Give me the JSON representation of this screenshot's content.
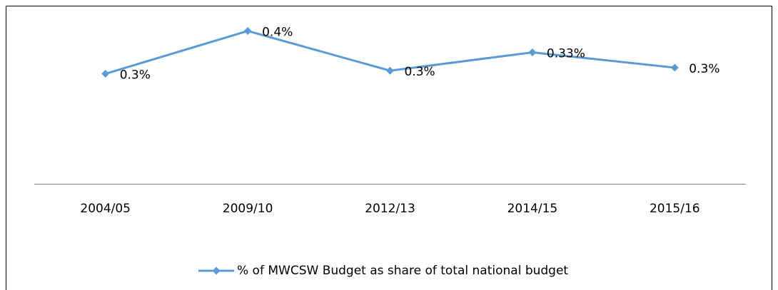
{
  "chart_data": {
    "type": "line",
    "categories": [
      "2004/05",
      "2009/10",
      "2012/13",
      "2014/15",
      "2015/16"
    ],
    "series": [
      {
        "name": "% of MWCSW Budget as share of total national budget",
        "color": "#5b9bd5",
        "values": [
          0.26,
          0.4,
          0.27,
          0.33,
          0.28
        ],
        "value_labels": [
          "0.3%",
          "0.4%",
          "0.3%",
          "0.33%",
          "0.3%"
        ]
      }
    ],
    "ylim": [
      -0.1,
      0.45
    ],
    "legend": "bottom"
  }
}
